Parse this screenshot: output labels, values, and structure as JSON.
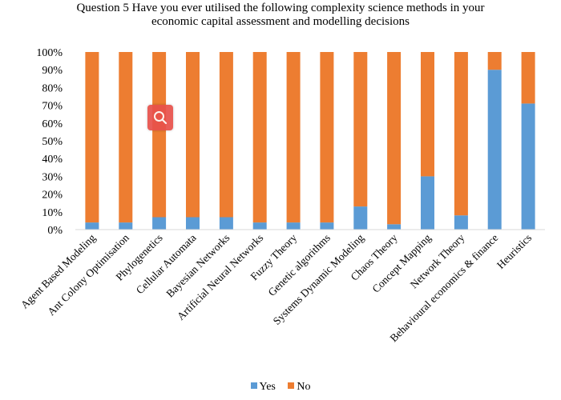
{
  "chart_data": {
    "type": "bar",
    "stacked": true,
    "title_lines": [
      "Question 5 Have you ever utilised the following complexity science methods in your",
      "economic capital assessment and modelling decisions"
    ],
    "categories": [
      "Agent Based Modeling",
      "Ant Colony Optimisation",
      "Phylogenetics",
      "Cellular Automata",
      "Bayesian Networks",
      "Artificial Neural Networks",
      "Fuzzy Theory",
      "Genetic algorithms",
      "Systems Dynamic Modeling",
      "Chaos Theory",
      "Concept Mapping",
      "Network Theory",
      "Behavioural economics & finance",
      "Heuristics"
    ],
    "series": [
      {
        "name": "Yes",
        "color": "#5b9bd5",
        "values": [
          4,
          4,
          7,
          7,
          7,
          4,
          4,
          4,
          13,
          3,
          30,
          8,
          90,
          71
        ]
      },
      {
        "name": "No",
        "color": "#ed7d31",
        "values": [
          96,
          96,
          93,
          93,
          93,
          96,
          96,
          96,
          87,
          97,
          70,
          92,
          10,
          29
        ]
      }
    ],
    "yticks": [
      "0%",
      "10%",
      "20%",
      "30%",
      "40%",
      "50%",
      "60%",
      "70%",
      "80%",
      "90%",
      "100%"
    ],
    "ylim": [
      0,
      100
    ],
    "grid": false,
    "legend_position": "bottom"
  },
  "overlay": {
    "zoom_icon": "search-icon",
    "zoom_color": "#e8514a"
  }
}
